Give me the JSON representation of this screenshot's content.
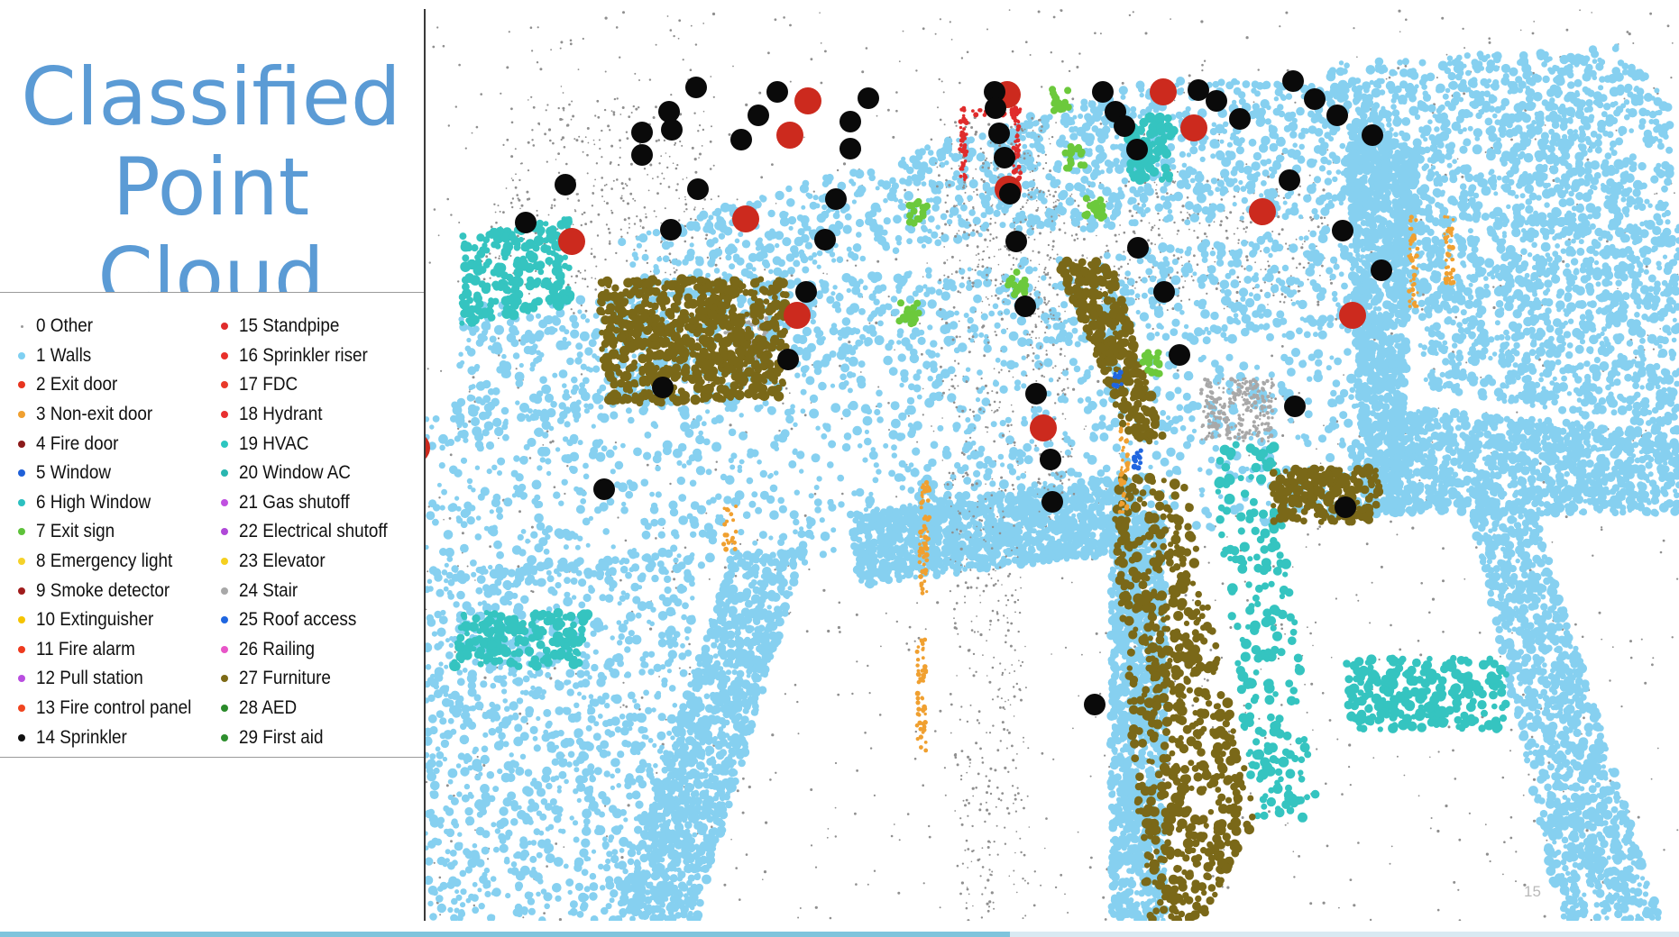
{
  "title": {
    "line1": "Classified",
    "line2": "Point Cloud"
  },
  "page_number": "15",
  "legend": [
    {
      "label": "0  Other",
      "color": "#9a9a9a"
    },
    {
      "label": "1  Walls",
      "color": "#7fd0f2"
    },
    {
      "label": "2  Exit door",
      "color": "#e8351f"
    },
    {
      "label": "3  Non-exit door",
      "color": "#f0a030"
    },
    {
      "label": "4  Fire door",
      "color": "#8b1a1a"
    },
    {
      "label": "5  Window",
      "color": "#1f60d8"
    },
    {
      "label": "6  High Window",
      "color": "#2cc0c0"
    },
    {
      "label": "7  Exit sign",
      "color": "#5ec23a"
    },
    {
      "label": "8  Emergency light",
      "color": "#f5d22a"
    },
    {
      "label": "9  Smoke detector",
      "color": "#a01c1c"
    },
    {
      "label": "10  Extinguisher",
      "color": "#f5c400"
    },
    {
      "label": "11  Fire alarm",
      "color": "#ee3a1e"
    },
    {
      "label": "12  Pull station",
      "color": "#b94ee0"
    },
    {
      "label": "13  Fire control panel",
      "color": "#f04520"
    },
    {
      "label": "14  Sprinkler",
      "color": "#111111"
    },
    {
      "label": "15  Standpipe",
      "color": "#e02c2c"
    },
    {
      "label": "16  Sprinkler riser",
      "color": "#e8302a"
    },
    {
      "label": "17  FDC",
      "color": "#e83a2a"
    },
    {
      "label": "18  Hydrant",
      "color": "#e83030"
    },
    {
      "label": "19  HVAC",
      "color": "#2cc6c0"
    },
    {
      "label": "20  Window AC",
      "color": "#29b6b0"
    },
    {
      "label": "21  Gas shutoff",
      "color": "#c050e0"
    },
    {
      "label": "22  Electrical shutoff",
      "color": "#b048d8"
    },
    {
      "label": "23  Elevator",
      "color": "#f5d020"
    },
    {
      "label": "24  Stair",
      "color": "#a8a8a8"
    },
    {
      "label": "25  Roof access",
      "color": "#1f66e0"
    },
    {
      "label": "26  Railing",
      "color": "#e855c8"
    },
    {
      "label": "27  Furniture",
      "color": "#7d6a16"
    },
    {
      "label": "28  AED",
      "color": "#2a8a2a"
    },
    {
      "label": "29  First aid",
      "color": "#2e8f2e"
    }
  ],
  "scene_colors": {
    "walls": "#86d0f0",
    "other": "#8f8f8f",
    "sprinkler": "#0a0a0a",
    "smoke_detector": "#cc2a1e",
    "furniture": "#7a6818",
    "hvac": "#35c4c0",
    "exit_sign": "#6cc93c",
    "non_exit_door": "#f0a030",
    "window": "#1f66e0",
    "fire_door": "#e02c2c",
    "stair": "#a8a8a8"
  }
}
